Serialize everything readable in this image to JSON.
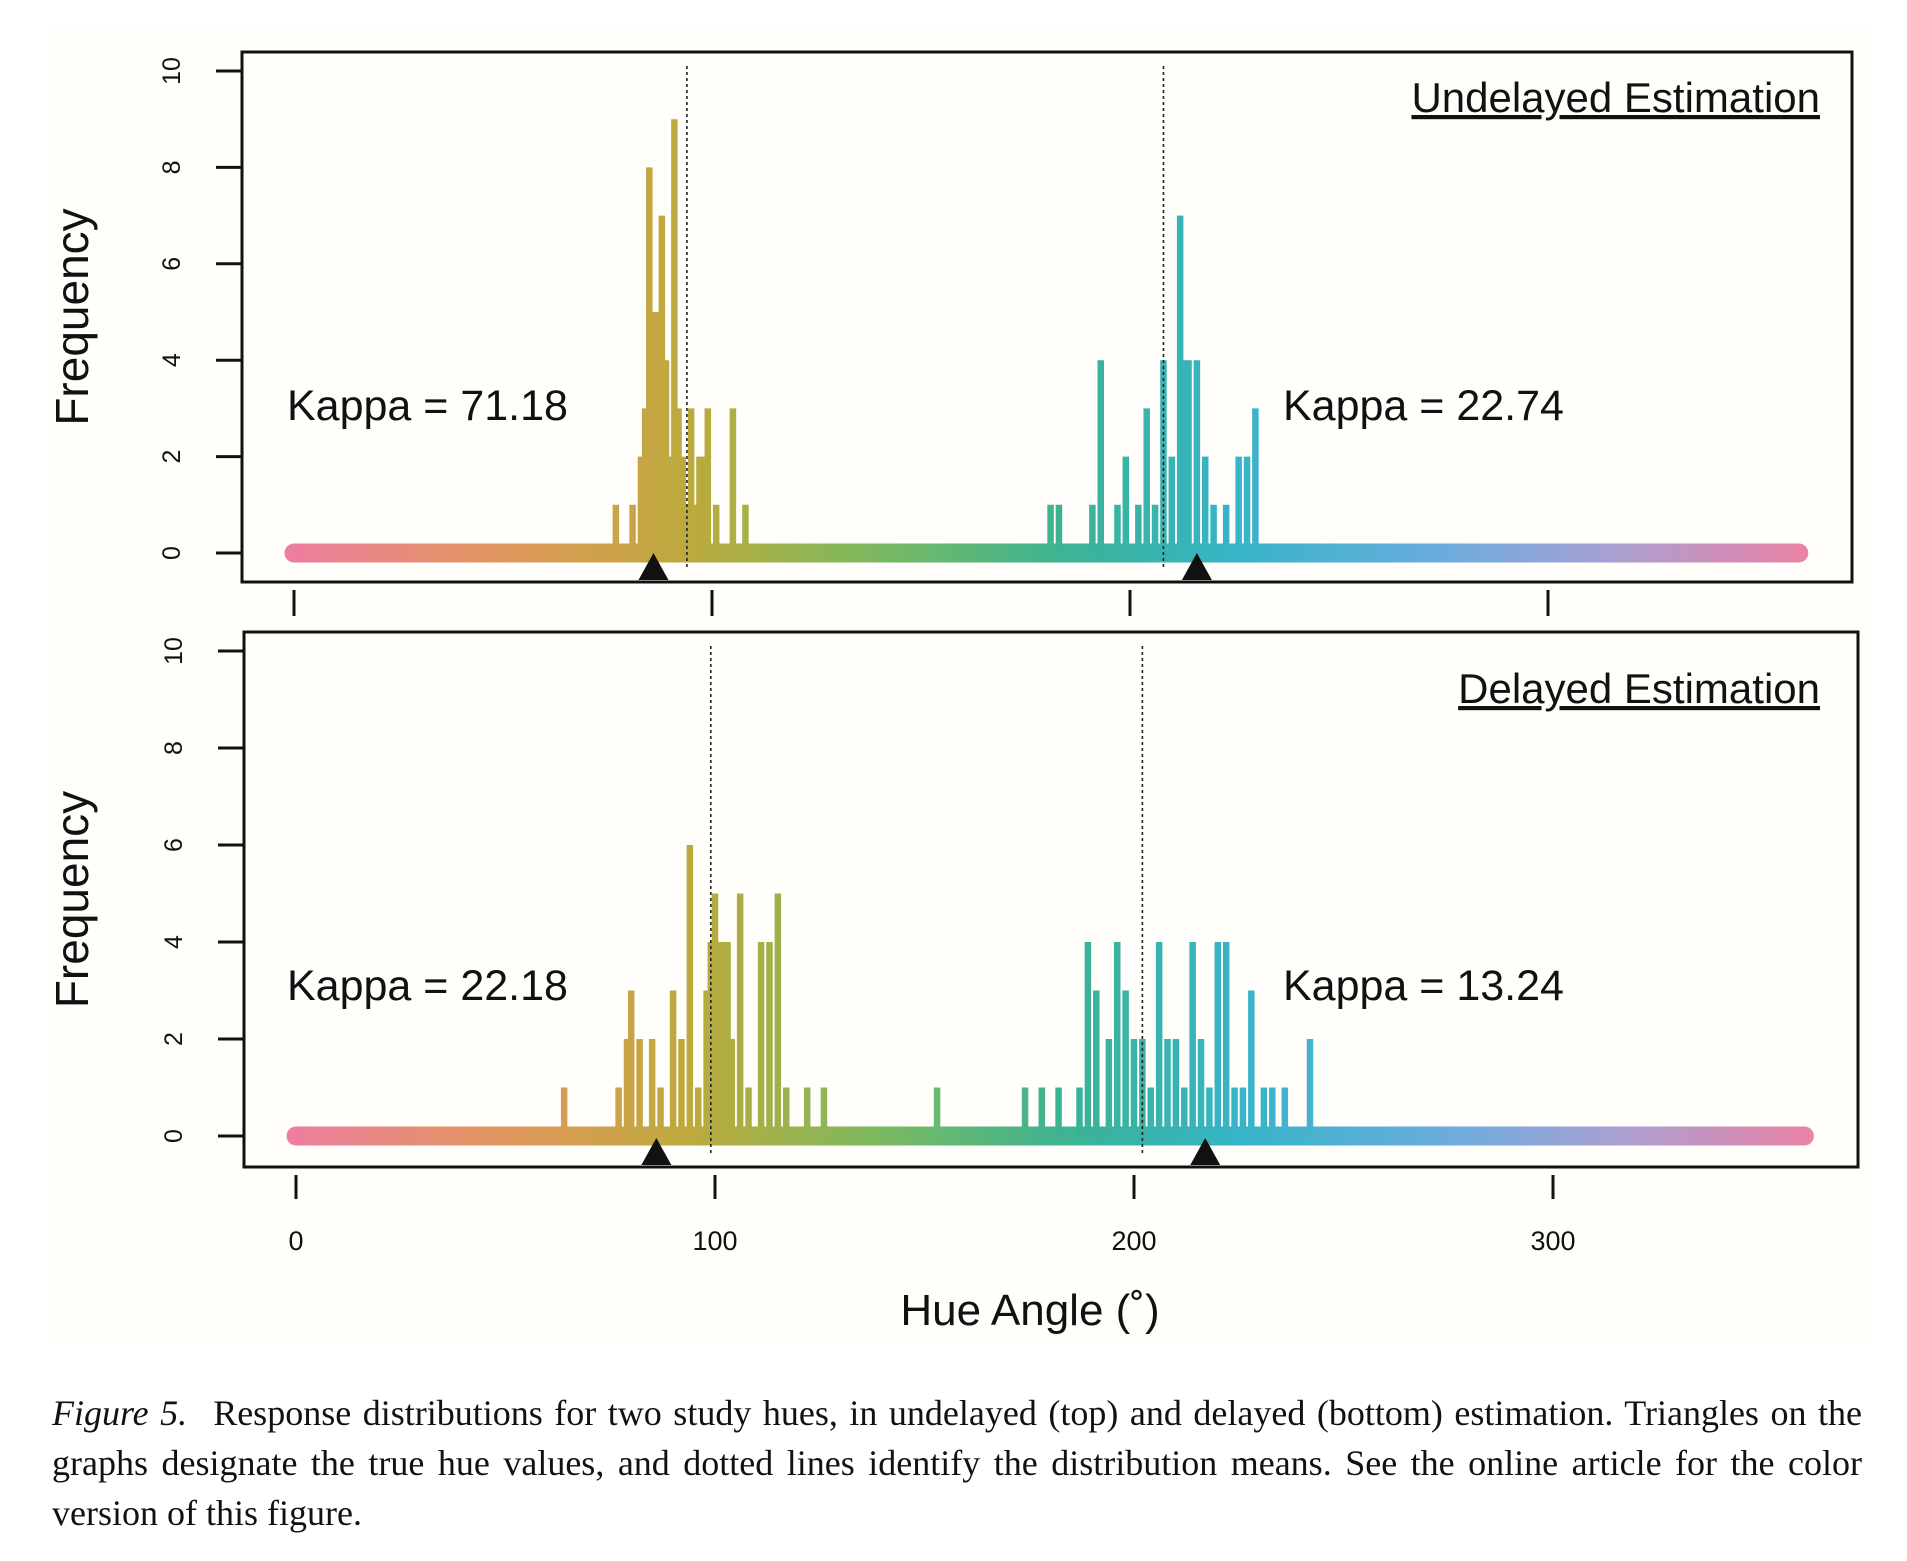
{
  "chart_data": [
    {
      "type": "bar",
      "title": "Undelayed Estimation",
      "ylabel": "Frequency",
      "xlim": [
        0,
        360
      ],
      "ylim": [
        0,
        10
      ],
      "yticks": [
        0,
        2,
        4,
        6,
        8,
        10
      ],
      "xticks": [
        100,
        200,
        300
      ],
      "x": [
        77,
        81,
        83,
        84,
        85,
        86,
        87,
        88,
        89,
        90,
        91,
        92,
        93,
        94,
        95,
        96,
        97,
        98,
        99,
        101,
        105,
        108,
        181,
        183,
        191,
        193,
        197,
        199,
        202,
        204,
        206,
        208,
        210,
        212,
        213,
        214,
        216,
        218,
        220,
        223,
        226,
        228,
        230
      ],
      "values": [
        1,
        1,
        2,
        3,
        8,
        5,
        5,
        7,
        4,
        2,
        9,
        3,
        2,
        1,
        3,
        1,
        2,
        2,
        3,
        1,
        3,
        1,
        1,
        1,
        1,
        4,
        1,
        2,
        1,
        3,
        1,
        4,
        2,
        7,
        4,
        4,
        4,
        2,
        1,
        1,
        2,
        2,
        3
      ],
      "annotations": [
        {
          "text": "Kappa = 71.18"
        },
        {
          "text": "Kappa = 22.74"
        }
      ],
      "true_hues": [
        86,
        216
      ],
      "means": [
        94,
        208
      ]
    },
    {
      "type": "bar",
      "title": "Delayed Estimation",
      "ylabel": "Frequency",
      "xlabel": "Hue Angle (˚)",
      "xlim": [
        0,
        360
      ],
      "ylim": [
        0,
        10
      ],
      "yticks": [
        0,
        2,
        4,
        6,
        8,
        10
      ],
      "xticks": [
        0,
        100,
        200,
        300
      ],
      "x": [
        64,
        77,
        79,
        80,
        82,
        85,
        87,
        90,
        92,
        94,
        96,
        98,
        99,
        100,
        101,
        102,
        103,
        104,
        106,
        108,
        111,
        113,
        115,
        117,
        122,
        126,
        153,
        174,
        178,
        182,
        187,
        189,
        191,
        194,
        196,
        198,
        200,
        202,
        204,
        206,
        208,
        210,
        212,
        214,
        216,
        218,
        220,
        222,
        224,
        226,
        228,
        231,
        233,
        236,
        242
      ],
      "values": [
        1,
        1,
        2,
        3,
        2,
        2,
        1,
        3,
        2,
        6,
        1,
        3,
        4,
        5,
        4,
        4,
        4,
        2,
        5,
        1,
        4,
        4,
        5,
        1,
        1,
        1,
        1,
        1,
        1,
        1,
        1,
        4,
        3,
        2,
        4,
        3,
        2,
        2,
        1,
        4,
        2,
        2,
        1,
        4,
        2,
        1,
        4,
        4,
        1,
        1,
        3,
        1,
        1,
        1,
        2
      ],
      "annotations": [
        {
          "text": "Kappa = 22.18"
        },
        {
          "text": "Kappa = 13.24"
        }
      ],
      "true_hues": [
        86,
        217
      ],
      "means": [
        99,
        202
      ]
    }
  ],
  "caption": {
    "label": "Figure 5.",
    "text": "Response distributions for two study hues, in undelayed (top) and delayed (bottom) estimation. Triangles on the graphs designate the true hue values, and dotted lines identify the distribution means. See the online article for the color version of this figure."
  }
}
